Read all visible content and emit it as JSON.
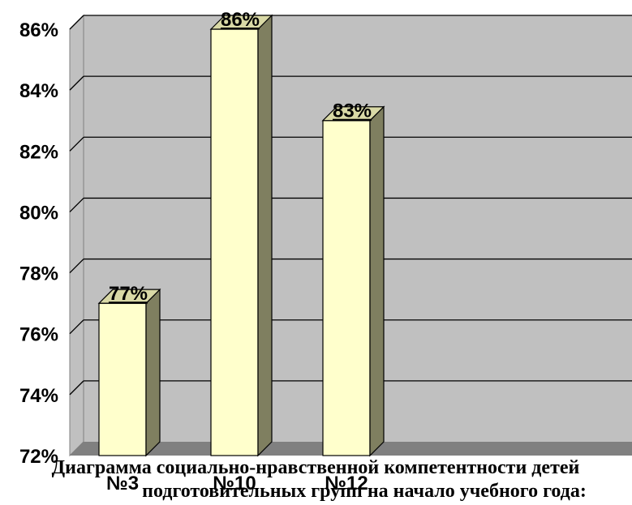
{
  "chart_data": {
    "type": "bar",
    "categories": [
      "№3",
      "№10",
      "№12"
    ],
    "values": [
      77,
      86,
      83
    ],
    "data_labels": [
      "77%",
      "86%",
      "83%"
    ],
    "yticks": [
      72,
      74,
      76,
      78,
      80,
      82,
      84,
      86
    ],
    "ytick_labels": [
      "72%",
      "74%",
      "76%",
      "78%",
      "80%",
      "82%",
      "84%",
      "86%"
    ],
    "ylim": [
      72,
      86
    ],
    "title_lines": [
      "Диаграмма социально-нравственной компетентности детей",
      "подготовительных групп на начало  учебного года:"
    ],
    "grid": true,
    "colors": {
      "plot_bg": "#c0c0c0",
      "bar_front": "#ffffcc",
      "bar_side": "#7f7f60",
      "bar_top": "#d9d9a6",
      "floor": "#808080",
      "gridline": "#000000"
    }
  }
}
